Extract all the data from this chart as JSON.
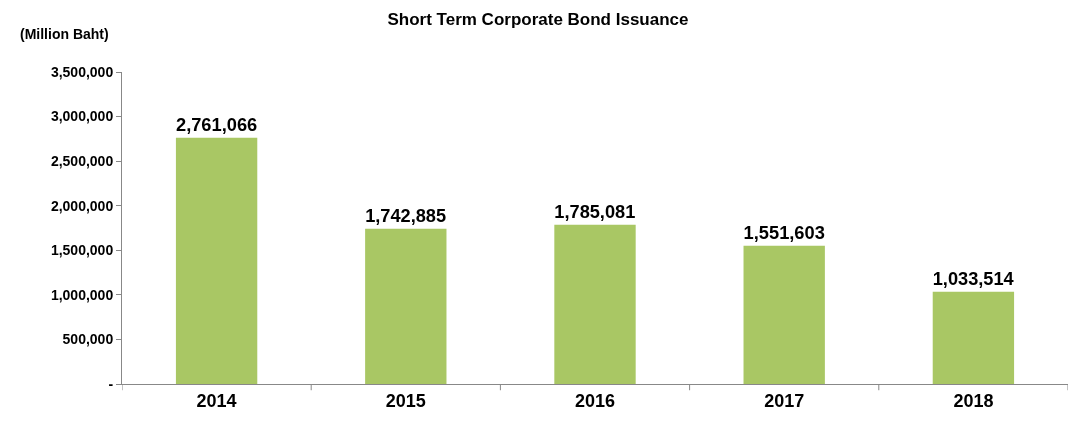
{
  "chart_data": {
    "type": "bar",
    "title": "Short Term Corporate Bond Issuance",
    "ylabel": "(Million Baht)",
    "categories": [
      "2014",
      "2015",
      "2016",
      "2017",
      "2018"
    ],
    "values": [
      2761066,
      1742885,
      1785081,
      1551603,
      1033514
    ],
    "value_labels": [
      "2,761,066",
      "1,742,885",
      "1,785,081",
      "1,551,603",
      "1,033,514"
    ],
    "color": "#a9c764",
    "ylim": [
      0,
      3500000
    ],
    "yticks": [
      {
        "value": 0,
        "label": "-"
      },
      {
        "value": 500000,
        "label": "500,000"
      },
      {
        "value": 1000000,
        "label": "1,000,000"
      },
      {
        "value": 1500000,
        "label": "1,500,000"
      },
      {
        "value": 2000000,
        "label": "2,000,000"
      },
      {
        "value": 2500000,
        "label": "2,500,000"
      },
      {
        "value": 3000000,
        "label": "3,000,000"
      },
      {
        "value": 3500000,
        "label": "3,500,000"
      }
    ],
    "grid": false
  }
}
